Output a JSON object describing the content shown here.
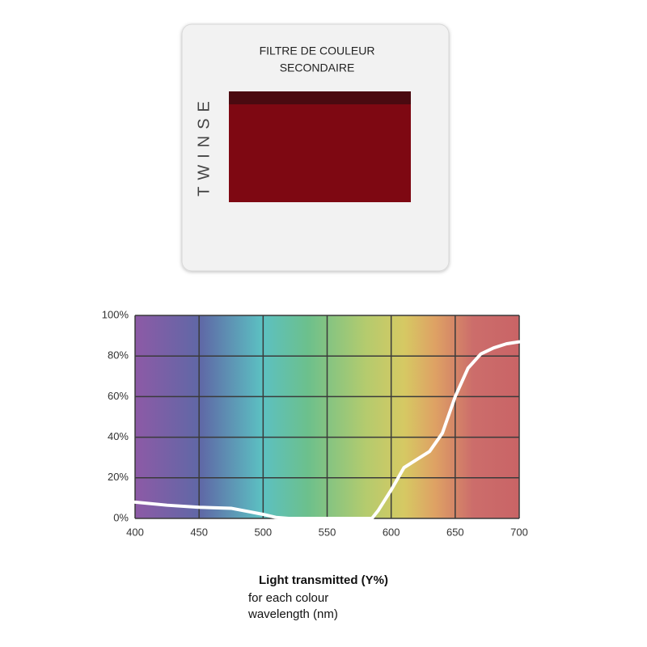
{
  "slide": {
    "label_lines": [
      "FILTRE DE COULEUR",
      "SECONDAIRE"
    ],
    "brand": "TWINSE"
  },
  "chart_data": {
    "type": "line",
    "title": "Light transmitted (Y%)",
    "subtitle_lines": [
      "for each colour",
      "wavelength (nm)"
    ],
    "x": [
      400,
      425,
      450,
      475,
      500,
      510,
      520,
      550,
      580,
      585,
      590,
      595,
      600,
      610,
      620,
      630,
      640,
      650,
      660,
      670,
      680,
      690,
      700
    ],
    "series": [
      {
        "color": "#ffffff",
        "values": [
          8,
          6.5,
          5.5,
          5,
          2,
          0.5,
          0,
          0,
          0,
          0,
          4,
          9,
          14,
          25,
          29,
          33,
          42,
          60,
          74,
          81,
          84,
          86,
          87
        ]
      }
    ],
    "xlim": [
      400,
      700
    ],
    "xticks": [
      400,
      450,
      500,
      550,
      600,
      650,
      700
    ],
    "ylim": [
      0,
      100
    ],
    "yticks": [
      {
        "value": 0,
        "label": "0%"
      },
      {
        "value": 20,
        "label": "20%"
      },
      {
        "value": 40,
        "label": "40%"
      },
      {
        "value": 60,
        "label": "60%"
      },
      {
        "value": 80,
        "label": "80%"
      },
      {
        "value": 100,
        "label": "100%"
      }
    ],
    "grid": true
  }
}
